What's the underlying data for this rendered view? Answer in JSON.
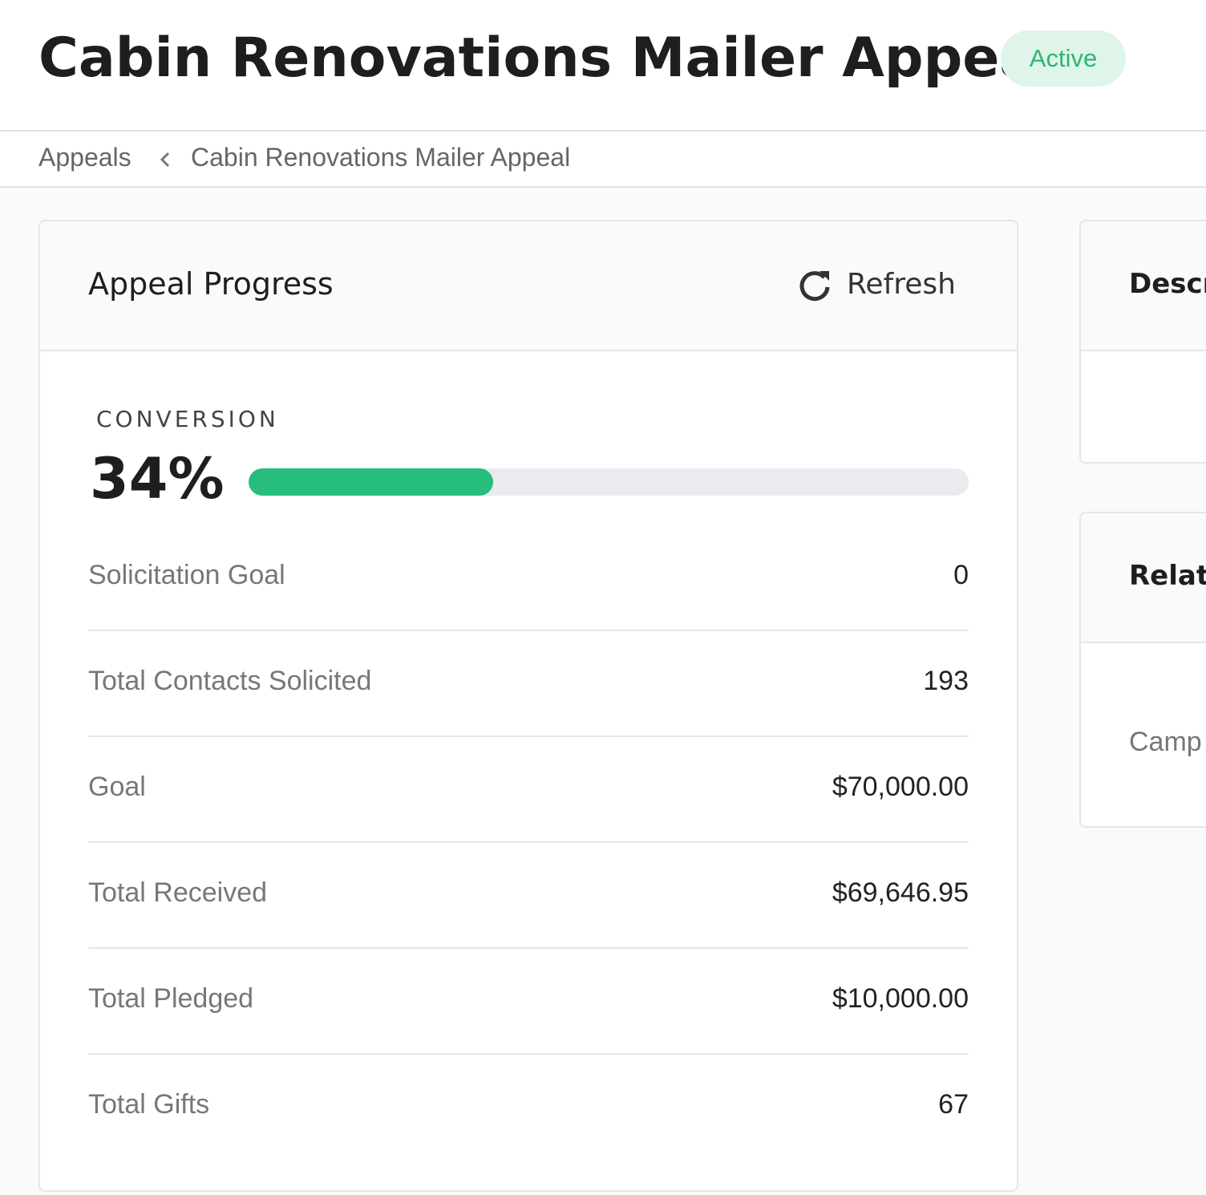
{
  "header": {
    "title": "Cabin Renovations Mailer Appeal",
    "status": "Active"
  },
  "breadcrumb": [
    "Appeals",
    "Cabin Renovations Mailer Appeal"
  ],
  "progress": {
    "title": "Appeal Progress",
    "refresh": "Refresh",
    "conversion": {
      "label": "CONVERSION",
      "value": 34,
      "value_label": "34%"
    },
    "rows": [
      {
        "label": "Solicitation Goal",
        "value": "0"
      },
      {
        "label": "Total Contacts Solicited",
        "value": "193"
      },
      {
        "label": "Goal",
        "value": "$70,000.00"
      },
      {
        "label": "Total Received",
        "value": "$69,646.95"
      },
      {
        "label": "Total Pledged",
        "value": "$10,000.00"
      },
      {
        "label": "Total Gifts",
        "value": "67"
      }
    ]
  },
  "side_cards": [
    {
      "title": "Descr"
    },
    {
      "title": "Relati",
      "body": "Camp"
    }
  ]
}
